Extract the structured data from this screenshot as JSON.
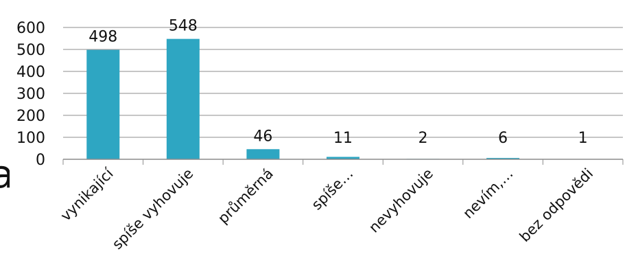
{
  "chart_data": {
    "type": "bar",
    "categories": [
      "vynikající",
      "spíše vyhovuje",
      "průměrná",
      "spíše…",
      "nevyhovuje",
      "nevím,…",
      "bez odpovědi"
    ],
    "series": [
      {
        "values": [
          498,
          548,
          46,
          11,
          2,
          6,
          1
        ],
        "color": "#2ea6c2"
      }
    ],
    "data_labels": [
      "498",
      "548",
      "46",
      "11",
      "2",
      "6",
      "1"
    ],
    "y_ticks": [
      "0",
      "100",
      "200",
      "300",
      "400",
      "500",
      "600"
    ],
    "ylim": [
      0,
      600
    ],
    "grid": true,
    "legend": "none"
  },
  "fragment_text": "a"
}
